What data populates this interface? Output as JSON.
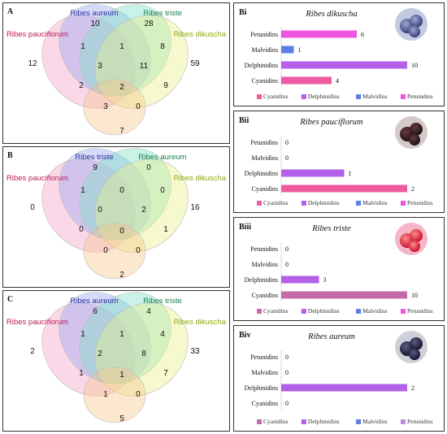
{
  "venn_colors": {
    "set1": "#f4a3c8",
    "set2": "#9aa6f0",
    "set3": "#7fe0c9",
    "set4": "#e9f08a",
    "set5": "#f8c58c"
  },
  "venns": [
    {
      "panel_label": "A",
      "set_names": [
        "Ribes aureum",
        "Ribes triste",
        "Ribes pauciflorum",
        "Ribes dikuscha"
      ],
      "label_colors": [
        "#2b2f9e",
        "#1b7f4a",
        "#c2185b",
        "#8fa814"
      ],
      "counts": {
        "only_top_left": "10",
        "only_top_right": "28",
        "only_left": "12",
        "only_right": "59",
        "a": "1",
        "b": "1",
        "c": "8",
        "d": "3",
        "e": "11",
        "f": "2",
        "g": "2",
        "h": "9",
        "i": "3",
        "j": "0",
        "bottom": "7"
      }
    },
    {
      "panel_label": "B",
      "set_names": [
        "Ribes triste",
        "Ribes aureum",
        "Ribes pauciflorum",
        "Ribes dikuscha"
      ],
      "label_colors": [
        "#2b2f9e",
        "#1b7f4a",
        "#c2185b",
        "#8fa814"
      ],
      "counts": {
        "only_top_left": "9",
        "only_top_right": "0",
        "only_left": "0",
        "only_right": "16",
        "a": "1",
        "b": "0",
        "c": "0",
        "d": "0",
        "e": "2",
        "f": "0",
        "g": "0",
        "h": "1",
        "i": "0",
        "j": "0",
        "bottom": "2"
      }
    },
    {
      "panel_label": "C",
      "set_names": [
        "Ribes aureum",
        "Ribes triste",
        "Ribes pauciflorum",
        "Ribes dikuscha"
      ],
      "label_colors": [
        "#2b2f9e",
        "#1b7f4a",
        "#c2185b",
        "#8fa814"
      ],
      "counts": {
        "only_top_left": "6",
        "only_top_right": "4",
        "only_left": "2",
        "only_right": "33",
        "a": "1",
        "b": "1",
        "c": "4",
        "d": "2",
        "e": "8",
        "f": "1",
        "g": "1",
        "h": "7",
        "i": "1",
        "j": "0",
        "bottom": "5"
      }
    }
  ],
  "chart_data": [
    {
      "type": "bar",
      "panel_label": "Bi",
      "title": "Ribes dikuscha",
      "categories": [
        "Petunidins",
        "Malvidins",
        "Delphinidins",
        "Cyanidins"
      ],
      "values": [
        6,
        1,
        10,
        4
      ],
      "xlim": [
        0,
        10
      ],
      "bar_colors": [
        "#ee55e0",
        "#5b7fe6",
        "#b261e8",
        "#ef5aa0"
      ],
      "legend": [
        "Cyanidins",
        "Delphinidins",
        "Malvidins",
        "Petunidins"
      ],
      "legend_colors": [
        "#ef5aa0",
        "#b261e8",
        "#5b7fe6",
        "#ee55e0"
      ],
      "berry": {
        "base": "#3a3f73",
        "highlight": "#9aa6d8",
        "ring": "#c2c9e0"
      }
    },
    {
      "type": "bar",
      "panel_label": "Bii",
      "title": "Ribes pauciflorum",
      "categories": [
        "Petunidins",
        "Malvidins",
        "Delphinidins",
        "Cyanidins"
      ],
      "values": [
        0,
        0,
        1,
        2
      ],
      "xlim": [
        0,
        2
      ],
      "bar_colors": [
        "#ee55e0",
        "#5b7fe6",
        "#b261e8",
        "#ef5aa0"
      ],
      "legend": [
        "Cyanidins",
        "Delphinidins",
        "Malvidins",
        "Petunidins"
      ],
      "legend_colors": [
        "#ef5aa0",
        "#b261e8",
        "#5b7fe6",
        "#ee55e0"
      ],
      "berry": {
        "base": "#1a1215",
        "highlight": "#6a3a40",
        "ring": "#d6c9c9"
      }
    },
    {
      "type": "bar",
      "panel_label": "Biii",
      "title": "Ribes triste",
      "categories": [
        "Petunidins",
        "Malvidins",
        "Delphinidins",
        "Cyanidins"
      ],
      "values": [
        0,
        0,
        3,
        10
      ],
      "xlim": [
        0,
        10
      ],
      "bar_colors": [
        "#ee55e0",
        "#5b7fe6",
        "#b261e8",
        "#c46aa8"
      ],
      "legend": [
        "Cyanidins",
        "Delphinidins",
        "Malvidins",
        "Petunidins"
      ],
      "legend_colors": [
        "#c46aa8",
        "#b261e8",
        "#5b7fe6",
        "#ee55e0"
      ],
      "berry": {
        "base": "#c8102e",
        "highlight": "#ff8a8a",
        "ring": "#f4b6c8"
      }
    },
    {
      "type": "bar",
      "panel_label": "Biv",
      "title": "Ribes aureum",
      "categories": [
        "Petunidins",
        "Malvidins",
        "Delphinidins",
        "Cyanidins"
      ],
      "values": [
        0,
        0,
        2,
        0
      ],
      "xlim": [
        0,
        2
      ],
      "bar_colors": [
        "#ee55e0",
        "#5b7fe6",
        "#b261e8",
        "#ef5aa0"
      ],
      "legend": [
        "Cyanidins",
        "Delphinidins",
        "Malvidins",
        "Petunidins"
      ],
      "legend_colors": [
        "#c46aa8",
        "#b261e8",
        "#5b7fe6",
        "#c48be6"
      ],
      "berry": {
        "base": "#15152a",
        "highlight": "#5a5a88",
        "ring": "#cfcfd8"
      }
    }
  ]
}
